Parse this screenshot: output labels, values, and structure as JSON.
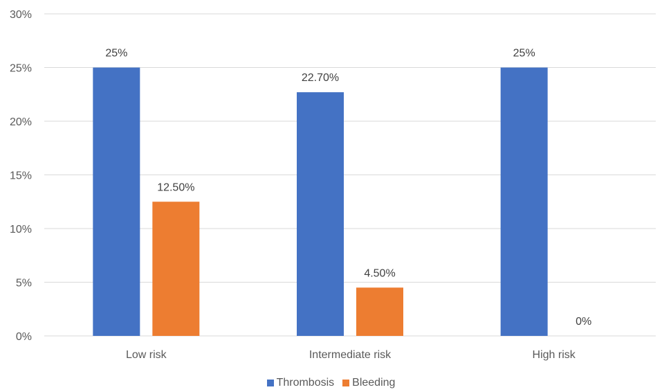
{
  "chart_data": {
    "type": "bar",
    "title": "",
    "xlabel": "",
    "ylabel": "",
    "categories": [
      "Low risk",
      "Intermediate risk",
      "High risk"
    ],
    "series": [
      {
        "name": "Thrombosis",
        "values": [
          25,
          22.7,
          25
        ],
        "labels": [
          "25%",
          "22.70%",
          "25%"
        ],
        "color": "#4472C4"
      },
      {
        "name": "Bleeding",
        "values": [
          12.5,
          4.5,
          0
        ],
        "labels": [
          "12.50%",
          "4.50%",
          "0%"
        ],
        "color": "#ED7D31"
      }
    ],
    "ylim": [
      0,
      30
    ],
    "yticks": [
      0,
      5,
      10,
      15,
      20,
      25,
      30
    ],
    "ytick_labels": [
      "0%",
      "5%",
      "10%",
      "15%",
      "20%",
      "25%",
      "30%"
    ],
    "grid": true,
    "gridline_color": "#D9D9D9",
    "legend_position": "bottom"
  }
}
